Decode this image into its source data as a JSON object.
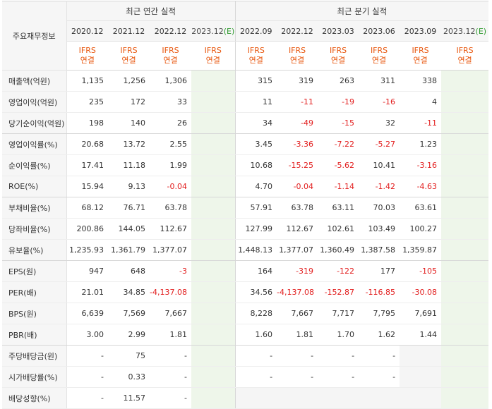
{
  "header": {
    "corner_label": "주요재무정보",
    "annual_group": "최근 연간 실적",
    "quarter_group": "최근 분기 실적",
    "annual_periods": [
      "2020.12",
      "2021.12",
      "2022.12",
      "2023.12(E)"
    ],
    "quarter_periods": [
      "2022.09",
      "2022.12",
      "2023.03",
      "2023.06",
      "2023.09",
      "2023.12(E)"
    ],
    "ifrs_line1": "IFRS",
    "ifrs_line2": "연결"
  },
  "rows": [
    {
      "label": "매출액(억원)",
      "annual": [
        "1,135",
        "1,256",
        "1,306",
        ""
      ],
      "quarter": [
        "315",
        "319",
        "263",
        "311",
        "338",
        ""
      ]
    },
    {
      "label": "영업이익(억원)",
      "annual": [
        "235",
        "172",
        "33",
        ""
      ],
      "quarter": [
        "11",
        "-11",
        "-19",
        "-16",
        "4",
        ""
      ]
    },
    {
      "label": "당기순이익(억원)",
      "annual": [
        "198",
        "140",
        "26",
        ""
      ],
      "quarter": [
        "34",
        "-49",
        "-15",
        "32",
        "-11",
        ""
      ]
    },
    {
      "label": "영업이익률(%)",
      "annual": [
        "20.68",
        "13.72",
        "2.55",
        ""
      ],
      "quarter": [
        "3.45",
        "-3.36",
        "-7.22",
        "-5.27",
        "1.23",
        ""
      ]
    },
    {
      "label": "순이익률(%)",
      "annual": [
        "17.41",
        "11.18",
        "1.99",
        ""
      ],
      "quarter": [
        "10.68",
        "-15.25",
        "-5.62",
        "10.41",
        "-3.16",
        ""
      ]
    },
    {
      "label": "ROE(%)",
      "annual": [
        "15.94",
        "9.13",
        "-0.04",
        ""
      ],
      "quarter": [
        "4.70",
        "-0.04",
        "-1.14",
        "-1.42",
        "-4.63",
        ""
      ]
    },
    {
      "label": "부채비율(%)",
      "annual": [
        "68.12",
        "76.71",
        "63.78",
        ""
      ],
      "quarter": [
        "57.91",
        "63.78",
        "63.11",
        "70.03",
        "63.61",
        ""
      ]
    },
    {
      "label": "당좌비율(%)",
      "annual": [
        "200.86",
        "144.05",
        "112.67",
        ""
      ],
      "quarter": [
        "127.99",
        "112.67",
        "102.61",
        "103.49",
        "100.27",
        ""
      ]
    },
    {
      "label": "유보율(%)",
      "annual": [
        "1,235.93",
        "1,361.79",
        "1,377.07",
        ""
      ],
      "quarter": [
        "1,448.13",
        "1,377.07",
        "1,360.49",
        "1,387.58",
        "1,359.87",
        ""
      ]
    },
    {
      "label": "EPS(원)",
      "annual": [
        "947",
        "648",
        "-3",
        ""
      ],
      "quarter": [
        "164",
        "-319",
        "-122",
        "177",
        "-105",
        ""
      ]
    },
    {
      "label": "PER(배)",
      "annual": [
        "21.01",
        "34.85",
        "-4,137.08",
        ""
      ],
      "quarter": [
        "34.56",
        "-4,137.08",
        "-152.87",
        "-116.85",
        "-30.08",
        ""
      ]
    },
    {
      "label": "BPS(원)",
      "annual": [
        "6,639",
        "7,569",
        "7,667",
        ""
      ],
      "quarter": [
        "8,228",
        "7,667",
        "7,717",
        "7,795",
        "7,691",
        ""
      ]
    },
    {
      "label": "PBR(배)",
      "annual": [
        "3.00",
        "2.99",
        "1.81",
        ""
      ],
      "quarter": [
        "1.60",
        "1.81",
        "1.70",
        "1.62",
        "1.44",
        ""
      ]
    },
    {
      "label": "주당배당금(원)",
      "annual": [
        "-",
        "75",
        "-",
        ""
      ],
      "quarter": [
        "-",
        "-",
        "-",
        "-",
        "",
        ""
      ]
    },
    {
      "label": "시가배당률(%)",
      "annual": [
        "-",
        "0.33",
        "-",
        ""
      ],
      "quarter": [
        "-",
        "-",
        "-",
        "-",
        "",
        ""
      ]
    },
    {
      "label": "배당성향(%)",
      "annual": [
        "-",
        "11.57",
        "-",
        ""
      ],
      "quarter": [
        "",
        "",
        "",
        "",
        "",
        ""
      ]
    }
  ],
  "colors": {
    "negative": "#e21d1d",
    "ifrs": "#e8560d",
    "estimate_bg": "#eef6ea",
    "estimate_mark": "#2f9a2f"
  }
}
